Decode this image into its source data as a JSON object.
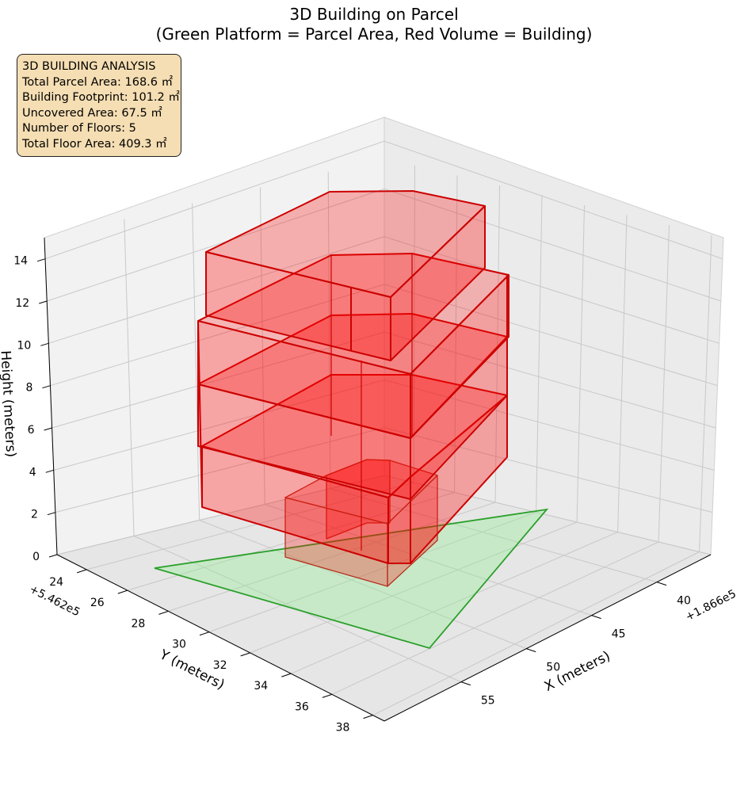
{
  "chart_data": {
    "type": "3d-polygons",
    "title": "3D Building on Parcel",
    "subtitle": "(Green Platform = Parcel Area, Red Volume = Building)",
    "xlabel": "X (meters)",
    "ylabel": "Y (meters)",
    "zlabel": "Height (meters)",
    "x_offset_label": "+1.866e5",
    "y_offset_label": "+5.462e5",
    "x_ticks": [
      "40",
      "45",
      "50",
      "55"
    ],
    "y_ticks": [
      "24",
      "26",
      "28",
      "30",
      "32",
      "34",
      "36",
      "38"
    ],
    "z_ticks": [
      "0",
      "2",
      "4",
      "6",
      "8",
      "10",
      "12",
      "14"
    ],
    "zlim": [
      0,
      15
    ],
    "grid": true,
    "legend_location": "none",
    "colors": {
      "parcel_fill": "#90ee90",
      "parcel_edge": "#2ca02c",
      "building_fill": "#ff0000",
      "building_edge": "#cc0000"
    },
    "parcel": {
      "name": "Parcel Area",
      "area_m2": 168.6
    },
    "building": {
      "name": "Building",
      "footprint_m2": 101.2,
      "floors": 5,
      "floor_height_m": 3,
      "total_height_m": 15,
      "total_floor_area_m2": 409.3
    }
  },
  "info_box": {
    "heading": "3D BUILDING ANALYSIS",
    "lines": [
      "Total Parcel Area: 168.6 ㎡",
      "Building Footprint: 101.2 ㎡",
      "Uncovered Area: 67.5 ㎡",
      "Number of Floors: 5",
      "Total Floor Area: 409.3 ㎡"
    ]
  }
}
